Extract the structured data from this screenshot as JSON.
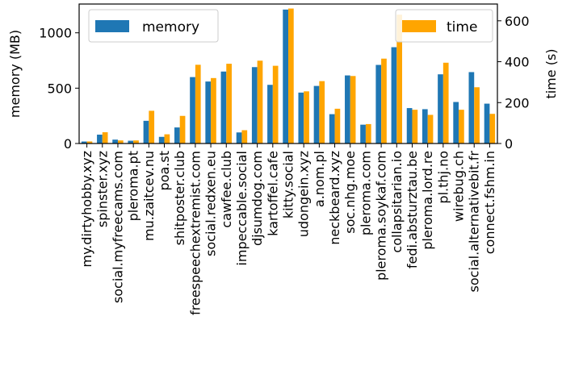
{
  "chart_data": {
    "type": "bar",
    "categories": [
      "my.dirtyhobby.xyz",
      "spinster.xyz",
      "social.myfreecams.com",
      "pleroma.pt",
      "mu.zaitcev.nu",
      "poa.st",
      "shitposter.club",
      "freespeechextremist.com",
      "social.redxen.eu",
      "cawfee.club",
      "impeccable.social",
      "djsumdog.com",
      "kartoffel.cafe",
      "kitty.social",
      "udongein.xyz",
      "a.nom.pl",
      "neckbeard.xyz",
      "soc.nhg.moe",
      "pleroma.com",
      "pleroma.soykaf.com",
      "collapsitarian.io",
      "fedi.absturztau.be",
      "pleroma.lord.re",
      "pl.thj.no",
      "wirebug.ch",
      "social.alternativebit.fr",
      "connect.fshm.in"
    ],
    "series": [
      {
        "name": "memory",
        "axis": "left",
        "color": "#1f77b4",
        "values": [
          18,
          80,
          35,
          25,
          205,
          60,
          145,
          600,
          560,
          650,
          100,
          690,
          530,
          1210,
          460,
          520,
          265,
          615,
          170,
          710,
          870,
          320,
          310,
          625,
          375,
          645,
          360
        ]
      },
      {
        "name": "time",
        "axis": "right",
        "color": "#ffa500",
        "values": [
          10,
          55,
          15,
          15,
          160,
          45,
          135,
          385,
          320,
          390,
          65,
          405,
          380,
          660,
          255,
          305,
          170,
          330,
          95,
          415,
          630,
          165,
          140,
          395,
          165,
          275,
          145
        ]
      }
    ],
    "title": "",
    "xlabel": "",
    "ylabel_left": "memory (MB)",
    "ylabel_right": "time (s)",
    "ylim_left": [
      0,
      1260
    ],
    "ylim_right": [
      0,
      682
    ],
    "yticks_left": [
      0,
      500,
      1000
    ],
    "yticks_right": [
      0,
      200,
      400,
      600
    ],
    "grid": false,
    "legend_left": {
      "label": "memory",
      "placement": "upper-left"
    },
    "legend_right": {
      "label": "time",
      "placement": "upper-right"
    }
  }
}
